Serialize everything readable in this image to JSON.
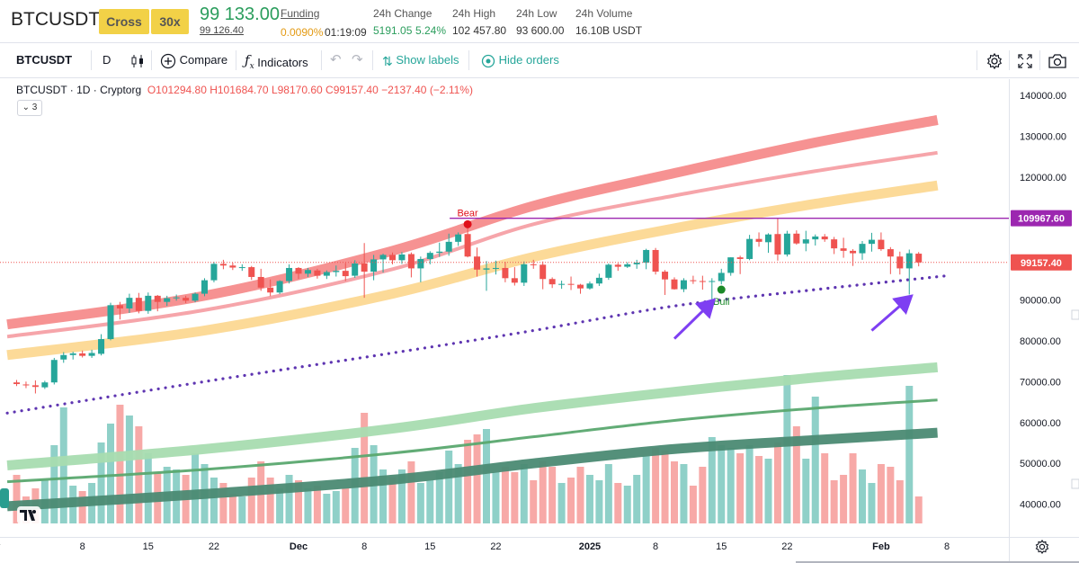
{
  "market_header": {
    "symbol": "BTCUSDT",
    "margin_mode": "Cross",
    "leverage": "30x",
    "last_price": "99 133.00",
    "mark_price": "99 126.40",
    "funding_label": "Funding",
    "funding_rate": "0.0090%",
    "funding_countdown": "01:19:09",
    "change_label": "24h Change",
    "change_value": "5191.05",
    "change_percent": "5.24%",
    "high_label": "24h High",
    "high_value": "102 457.80",
    "low_label": "24h Low",
    "low_value": "93 600.00",
    "volume_label": "24h Volume",
    "volume_value": "16.10B USDT"
  },
  "toolbar": {
    "symbol": "BTCUSDT",
    "interval": "D",
    "compare_label": "Compare",
    "indicators_label": "Indicators",
    "show_labels": "Show labels",
    "hide_orders": "Hide orders"
  },
  "legend": {
    "title": "BTCUSDT · 1D · Cryptorg",
    "open": "O101294.80",
    "high": "H101684.70",
    "low": "L98170.60",
    "close": "C99157.40",
    "change": "−2137.40 (−2.11%)",
    "collapsed_count": "3"
  },
  "colors": {
    "up": "#26a69a",
    "down": "#ef5350",
    "level_line": "#9c27b0",
    "dotted_ma": "#5e35b1",
    "arrow": "#7e3ff2",
    "bull_marker": "#1b8a28",
    "bear_marker": "#e0101a"
  },
  "chart_data": {
    "type": "candlestick",
    "symbol": "BTCUSDT",
    "interval": "1D",
    "source": "Cryptorg",
    "y_axis": {
      "min": 32000,
      "max": 144000,
      "ticks": [
        40000,
        50000,
        60000,
        70000,
        80000,
        90000,
        100000,
        110000,
        120000,
        130000,
        140000
      ],
      "tick_labels": [
        "40000.00",
        "50000.00",
        "60000.00",
        "70000.00",
        "80000.00",
        "90000.00",
        "100000.00",
        "110000.00",
        "120000.00",
        "130000.00",
        "140000.00"
      ]
    },
    "x_axis": {
      "ticks": [
        {
          "label": "v",
          "bar": -2
        },
        {
          "label": "8",
          "bar": 7
        },
        {
          "label": "15",
          "bar": 14
        },
        {
          "label": "22",
          "bar": 21
        },
        {
          "label": "Dec",
          "bar": 30
        },
        {
          "label": "8",
          "bar": 37
        },
        {
          "label": "15",
          "bar": 44
        },
        {
          "label": "22",
          "bar": 51
        },
        {
          "label": "2025",
          "bar": 61
        },
        {
          "label": "8",
          "bar": 68
        },
        {
          "label": "15",
          "bar": 75
        },
        {
          "label": "22",
          "bar": 82
        },
        {
          "label": "Feb",
          "bar": 92
        },
        {
          "label": "8",
          "bar": 99
        }
      ]
    },
    "price_labels": {
      "level": "109967.60",
      "last": "99157.40"
    },
    "level_value": 109967.6,
    "last_value": 99157.4,
    "candles": [
      {
        "o": 69800,
        "h": 70400,
        "l": 68900,
        "c": 69400,
        "v": 18
      },
      {
        "o": 69300,
        "h": 70000,
        "l": 68400,
        "c": 69100,
        "v": 10
      },
      {
        "o": 69100,
        "h": 70300,
        "l": 67100,
        "c": 68700,
        "v": 13
      },
      {
        "o": 68600,
        "h": 70200,
        "l": 68200,
        "c": 69800,
        "v": 16
      },
      {
        "o": 69800,
        "h": 75800,
        "l": 69300,
        "c": 75300,
        "v": 29
      },
      {
        "o": 75400,
        "h": 77200,
        "l": 74600,
        "c": 76500,
        "v": 43
      },
      {
        "o": 76500,
        "h": 77300,
        "l": 75400,
        "c": 76900,
        "v": 14
      },
      {
        "o": 76900,
        "h": 77600,
        "l": 75900,
        "c": 76300,
        "v": 12
      },
      {
        "o": 76300,
        "h": 77800,
        "l": 75800,
        "c": 77000,
        "v": 15
      },
      {
        "o": 76800,
        "h": 81600,
        "l": 76400,
        "c": 80400,
        "v": 30
      },
      {
        "o": 80400,
        "h": 89300,
        "l": 80100,
        "c": 88700,
        "v": 37
      },
      {
        "o": 88700,
        "h": 89500,
        "l": 85200,
        "c": 87900,
        "v": 44
      },
      {
        "o": 87900,
        "h": 91500,
        "l": 86800,
        "c": 90500,
        "v": 40
      },
      {
        "o": 90500,
        "h": 91700,
        "l": 86700,
        "c": 87300,
        "v": 36
      },
      {
        "o": 87300,
        "h": 91800,
        "l": 86600,
        "c": 91000,
        "v": 26
      },
      {
        "o": 91000,
        "h": 91200,
        "l": 87200,
        "c": 89500,
        "v": 19
      },
      {
        "o": 89500,
        "h": 91000,
        "l": 88500,
        "c": 90400,
        "v": 21
      },
      {
        "o": 90400,
        "h": 91300,
        "l": 89800,
        "c": 90600,
        "v": 20
      },
      {
        "o": 90500,
        "h": 91000,
        "l": 89200,
        "c": 89800,
        "v": 18
      },
      {
        "o": 89800,
        "h": 91800,
        "l": 89400,
        "c": 91500,
        "v": 26
      },
      {
        "o": 91500,
        "h": 95300,
        "l": 90900,
        "c": 94800,
        "v": 22
      },
      {
        "o": 94800,
        "h": 99300,
        "l": 94300,
        "c": 98800,
        "v": 17
      },
      {
        "o": 98800,
        "h": 99800,
        "l": 97500,
        "c": 98400,
        "v": 15
      },
      {
        "o": 98400,
        "h": 99100,
        "l": 97300,
        "c": 97900,
        "v": 11
      },
      {
        "o": 97900,
        "h": 98700,
        "l": 97100,
        "c": 98000,
        "v": 10
      },
      {
        "o": 98000,
        "h": 98300,
        "l": 94900,
        "c": 95600,
        "v": 17
      },
      {
        "o": 95600,
        "h": 97600,
        "l": 92200,
        "c": 93000,
        "v": 23
      },
      {
        "o": 93000,
        "h": 95000,
        "l": 90900,
        "c": 91800,
        "v": 17
      },
      {
        "o": 91800,
        "h": 94800,
        "l": 91400,
        "c": 94600,
        "v": 13
      },
      {
        "o": 94600,
        "h": 98700,
        "l": 94000,
        "c": 97800,
        "v": 18
      },
      {
        "o": 97800,
        "h": 98000,
        "l": 95100,
        "c": 96400,
        "v": 16
      },
      {
        "o": 96400,
        "h": 97800,
        "l": 95600,
        "c": 97300,
        "v": 13
      },
      {
        "o": 97200,
        "h": 97600,
        "l": 95200,
        "c": 95900,
        "v": 14
      },
      {
        "o": 95900,
        "h": 97200,
        "l": 95100,
        "c": 96800,
        "v": 11
      },
      {
        "o": 96800,
        "h": 98400,
        "l": 95700,
        "c": 97100,
        "v": 12
      },
      {
        "o": 97100,
        "h": 99000,
        "l": 94600,
        "c": 95800,
        "v": 13
      },
      {
        "o": 95900,
        "h": 99700,
        "l": 95400,
        "c": 98900,
        "v": 28
      },
      {
        "o": 98900,
        "h": 103900,
        "l": 90500,
        "c": 96900,
        "v": 41
      },
      {
        "o": 96900,
        "h": 101000,
        "l": 94800,
        "c": 99900,
        "v": 29
      },
      {
        "o": 99900,
        "h": 101300,
        "l": 96700,
        "c": 101000,
        "v": 20
      },
      {
        "o": 101000,
        "h": 101600,
        "l": 98700,
        "c": 99700,
        "v": 17
      },
      {
        "o": 99700,
        "h": 101700,
        "l": 98800,
        "c": 101100,
        "v": 20
      },
      {
        "o": 101200,
        "h": 101600,
        "l": 95500,
        "c": 97700,
        "v": 23
      },
      {
        "o": 97700,
        "h": 100600,
        "l": 94300,
        "c": 100000,
        "v": 15
      },
      {
        "o": 100000,
        "h": 101900,
        "l": 98700,
        "c": 101500,
        "v": 16
      },
      {
        "o": 101500,
        "h": 104000,
        "l": 100500,
        "c": 101800,
        "v": 19
      },
      {
        "o": 101800,
        "h": 106200,
        "l": 100800,
        "c": 104200,
        "v": 27
      },
      {
        "o": 104200,
        "h": 106500,
        "l": 103200,
        "c": 106000,
        "v": 22
      },
      {
        "o": 106100,
        "h": 108300,
        "l": 100400,
        "c": 100600,
        "v": 31
      },
      {
        "o": 100600,
        "h": 102800,
        "l": 95700,
        "c": 97400,
        "v": 33
      },
      {
        "o": 97400,
        "h": 99500,
        "l": 92200,
        "c": 97700,
        "v": 35
      },
      {
        "o": 97700,
        "h": 99600,
        "l": 96200,
        "c": 97800,
        "v": 19
      },
      {
        "o": 97800,
        "h": 99300,
        "l": 94300,
        "c": 95300,
        "v": 21
      },
      {
        "o": 95300,
        "h": 98000,
        "l": 93500,
        "c": 94200,
        "v": 19
      },
      {
        "o": 94200,
        "h": 99400,
        "l": 93400,
        "c": 98700,
        "v": 22
      },
      {
        "o": 98700,
        "h": 99800,
        "l": 97600,
        "c": 98600,
        "v": 16
      },
      {
        "o": 98600,
        "h": 99400,
        "l": 92600,
        "c": 95100,
        "v": 23
      },
      {
        "o": 95100,
        "h": 95500,
        "l": 92900,
        "c": 93800,
        "v": 21
      },
      {
        "o": 93800,
        "h": 94700,
        "l": 92700,
        "c": 93900,
        "v": 15
      },
      {
        "o": 93900,
        "h": 95700,
        "l": 92400,
        "c": 93700,
        "v": 17
      },
      {
        "o": 93700,
        "h": 93900,
        "l": 91500,
        "c": 92800,
        "v": 21
      },
      {
        "o": 92800,
        "h": 94500,
        "l": 92500,
        "c": 94000,
        "v": 18
      },
      {
        "o": 94000,
        "h": 96400,
        "l": 93400,
        "c": 95400,
        "v": 16
      },
      {
        "o": 95400,
        "h": 98900,
        "l": 94900,
        "c": 98600,
        "v": 22
      },
      {
        "o": 98600,
        "h": 99000,
        "l": 97100,
        "c": 98100,
        "v": 15
      },
      {
        "o": 98100,
        "h": 99200,
        "l": 97800,
        "c": 98700,
        "v": 14
      },
      {
        "o": 98700,
        "h": 99800,
        "l": 97600,
        "c": 99100,
        "v": 18
      },
      {
        "o": 99100,
        "h": 102500,
        "l": 97500,
        "c": 102200,
        "v": 25
      },
      {
        "o": 102200,
        "h": 102700,
        "l": 96200,
        "c": 96900,
        "v": 28
      },
      {
        "o": 96900,
        "h": 97300,
        "l": 91200,
        "c": 95000,
        "v": 27
      },
      {
        "o": 95000,
        "h": 95500,
        "l": 92500,
        "c": 92600,
        "v": 23
      },
      {
        "o": 92600,
        "h": 95300,
        "l": 91900,
        "c": 94800,
        "v": 22
      },
      {
        "o": 94800,
        "h": 95900,
        "l": 93900,
        "c": 94600,
        "v": 14
      },
      {
        "o": 94600,
        "h": 95900,
        "l": 92500,
        "c": 94500,
        "v": 21
      },
      {
        "o": 94500,
        "h": 95300,
        "l": 89300,
        "c": 94600,
        "v": 32
      },
      {
        "o": 94600,
        "h": 97600,
        "l": 93800,
        "c": 96600,
        "v": 29
      },
      {
        "o": 96600,
        "h": 100400,
        "l": 95900,
        "c": 100400,
        "v": 28
      },
      {
        "o": 100400,
        "h": 100800,
        "l": 96300,
        "c": 100000,
        "v": 26
      },
      {
        "o": 100000,
        "h": 105900,
        "l": 99700,
        "c": 104900,
        "v": 29
      },
      {
        "o": 104900,
        "h": 106500,
        "l": 103000,
        "c": 104200,
        "v": 25
      },
      {
        "o": 104100,
        "h": 106300,
        "l": 101500,
        "c": 106000,
        "v": 24
      },
      {
        "o": 106100,
        "h": 109967,
        "l": 99600,
        "c": 101100,
        "v": 30
      },
      {
        "o": 101100,
        "h": 106900,
        "l": 100600,
        "c": 106200,
        "v": 55
      },
      {
        "o": 106200,
        "h": 107000,
        "l": 103500,
        "c": 103800,
        "v": 36
      },
      {
        "o": 103800,
        "h": 106900,
        "l": 101900,
        "c": 104800,
        "v": 24
      },
      {
        "o": 104800,
        "h": 106000,
        "l": 103300,
        "c": 105500,
        "v": 47
      },
      {
        "o": 105500,
        "h": 106100,
        "l": 104200,
        "c": 104800,
        "v": 26
      },
      {
        "o": 104800,
        "h": 105400,
        "l": 101200,
        "c": 102600,
        "v": 16
      },
      {
        "o": 102600,
        "h": 105200,
        "l": 100300,
        "c": 102000,
        "v": 18
      },
      {
        "o": 102000,
        "h": 102400,
        "l": 98300,
        "c": 101400,
        "v": 26
      },
      {
        "o": 101400,
        "h": 104400,
        "l": 99800,
        "c": 103700,
        "v": 20
      },
      {
        "o": 103700,
        "h": 106400,
        "l": 101800,
        "c": 104700,
        "v": 15
      },
      {
        "o": 104700,
        "h": 106500,
        "l": 102000,
        "c": 102400,
        "v": 22
      },
      {
        "o": 102400,
        "h": 102900,
        "l": 96300,
        "c": 100600,
        "v": 21
      },
      {
        "o": 100600,
        "h": 101800,
        "l": 96200,
        "c": 97700,
        "v": 16
      },
      {
        "o": 97700,
        "h": 102300,
        "l": 91300,
        "c": 101400,
        "v": 51
      },
      {
        "o": 101300,
        "h": 101700,
        "l": 98200,
        "c": 99157,
        "v": 10
      }
    ],
    "bands": [
      {
        "name": "red-band-thick",
        "color": "#f58c8c",
        "width": 11,
        "points": [
          [
            -1,
            84000
          ],
          [
            20,
            91000
          ],
          [
            40,
            102000
          ],
          [
            55,
            113000
          ],
          [
            70,
            121000
          ],
          [
            85,
            128500
          ],
          [
            98,
            134000
          ]
        ]
      },
      {
        "name": "red-band-thin",
        "color": "#f5a0a5",
        "width": 4,
        "points": [
          [
            -1,
            81000
          ],
          [
            20,
            87500
          ],
          [
            40,
            97500
          ],
          [
            55,
            108500
          ],
          [
            70,
            115500
          ],
          [
            85,
            121500
          ],
          [
            98,
            126000
          ]
        ]
      },
      {
        "name": "orange-band",
        "color": "#fcd892",
        "width": 11,
        "points": [
          [
            -1,
            76500
          ],
          [
            20,
            82500
          ],
          [
            40,
            91500
          ],
          [
            55,
            100500
          ],
          [
            70,
            107500
          ],
          [
            85,
            113500
          ],
          [
            98,
            118000
          ]
        ]
      },
      {
        "name": "green-band-light",
        "color": "#a8dcb0",
        "width": 11,
        "points": [
          [
            -1,
            49500
          ],
          [
            20,
            53500
          ],
          [
            40,
            58500
          ],
          [
            55,
            63500
          ],
          [
            70,
            67500
          ],
          [
            85,
            71000
          ],
          [
            98,
            73500
          ]
        ]
      },
      {
        "name": "green-band-thin",
        "color": "#5aa86f",
        "width": 3,
        "points": [
          [
            -1,
            45500
          ],
          [
            20,
            48500
          ],
          [
            40,
            52500
          ],
          [
            55,
            56500
          ],
          [
            70,
            60500
          ],
          [
            85,
            63500
          ],
          [
            98,
            65500
          ]
        ]
      },
      {
        "name": "green-band-dark",
        "color": "#4b8a73",
        "width": 11,
        "points": [
          [
            -1,
            39500
          ],
          [
            20,
            42500
          ],
          [
            40,
            46000
          ],
          [
            55,
            50000
          ],
          [
            70,
            53500
          ],
          [
            85,
            55700
          ],
          [
            98,
            57500
          ]
        ]
      }
    ],
    "dotted_ma": {
      "name": "long-ma-dotted",
      "points": [
        [
          -1,
          62300
        ],
        [
          20,
          70000
        ],
        [
          40,
          77000
        ],
        [
          55,
          82500
        ],
        [
          70,
          88500
        ],
        [
          85,
          92500
        ],
        [
          99,
          95900
        ]
      ]
    },
    "signals": [
      {
        "label": "Bear",
        "bar": 48,
        "value": 108500,
        "kind": "bear"
      },
      {
        "label": "Bull",
        "bar": 75,
        "value": 92500,
        "kind": "bull"
      }
    ],
    "arrows": [
      {
        "from_bar": 70,
        "from_value": 80500,
        "to_bar": 74,
        "to_value": 89500
      },
      {
        "from_bar": 91,
        "from_value": 82500,
        "to_bar": 95,
        "to_value": 90500
      }
    ]
  }
}
